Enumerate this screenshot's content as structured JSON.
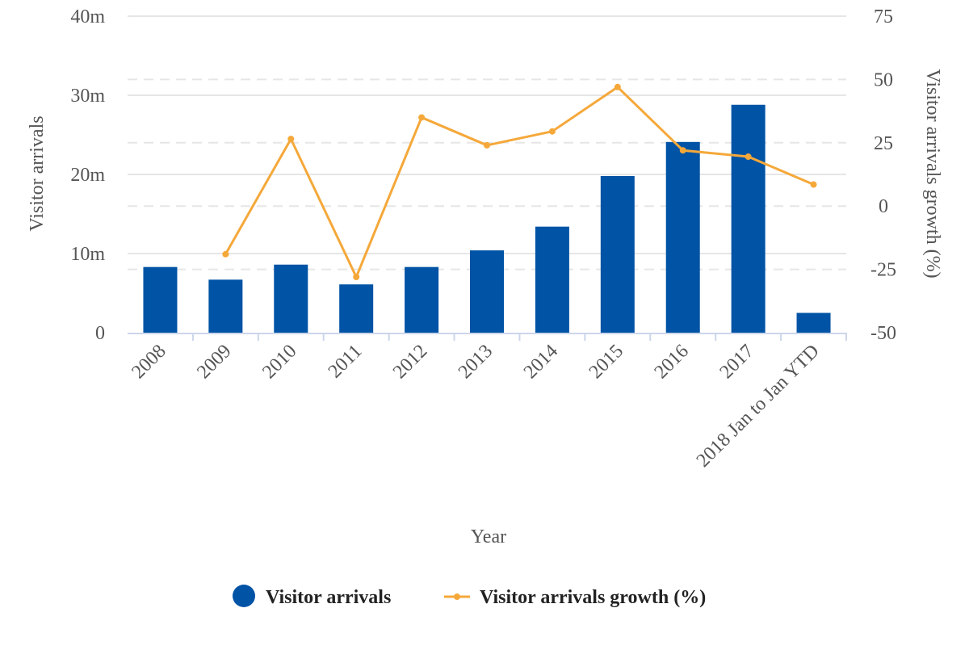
{
  "chart_data": {
    "type": "bar",
    "title": "",
    "categories": [
      "2008",
      "2009",
      "2010",
      "2011",
      "2012",
      "2013",
      "2014",
      "2015",
      "2016",
      "2017",
      "2018 Jan to Jan YTD"
    ],
    "xlabel": "Year",
    "series": [
      {
        "name": "Visitor arrivals",
        "type": "bar",
        "axis": "left",
        "color": "#0053a5",
        "values": [
          8.3,
          6.7,
          8.6,
          6.1,
          8.3,
          10.4,
          13.4,
          19.8,
          24.1,
          28.8,
          2.5
        ]
      },
      {
        "name": "Visitor arrivals growth (%)",
        "type": "line",
        "axis": "right",
        "color": "#f5a83a",
        "values": [
          null,
          -19,
          26.5,
          -28,
          35,
          24,
          29.5,
          47,
          22,
          19.5,
          8.5
        ]
      }
    ],
    "y_left": {
      "label": "Visitor arrivals",
      "ylim": [
        0,
        40
      ],
      "ticks": [
        0,
        10,
        20,
        30,
        40
      ],
      "tick_labels": [
        "0",
        "10m",
        "20m",
        "30m",
        "40m"
      ]
    },
    "y_right": {
      "label": "Visitor arrivals growth (%)",
      "ylim": [
        -50,
        75
      ],
      "ticks": [
        -50,
        -25,
        0,
        25,
        50,
        75
      ],
      "tick_labels": [
        "-50",
        "-25",
        "0",
        "25",
        "50",
        "75"
      ]
    },
    "grid": true,
    "legend": {
      "position": "bottom-center",
      "items": [
        "Visitor arrivals",
        "Visitor arrivals growth (%)"
      ]
    }
  }
}
